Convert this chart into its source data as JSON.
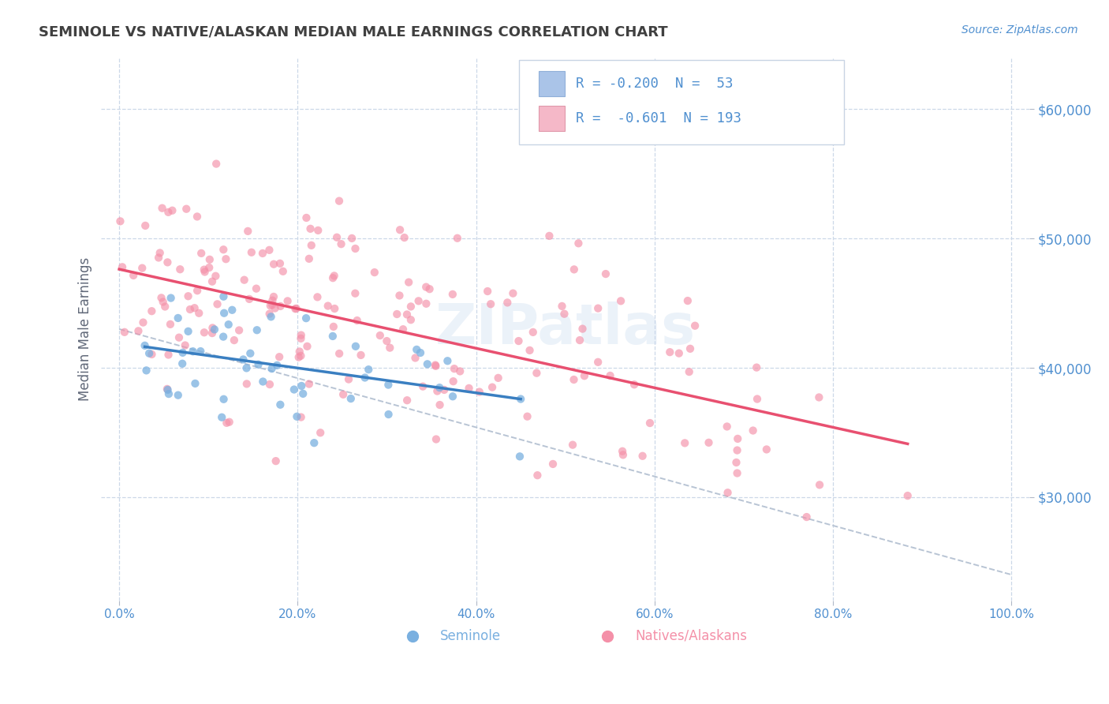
{
  "title": "SEMINOLE VS NATIVE/ALASKAN MEDIAN MALE EARNINGS CORRELATION CHART",
  "source": "Source: ZipAtlas.com",
  "ylabel": "Median Male Earnings",
  "yticks": [
    30000,
    40000,
    50000,
    60000
  ],
  "ytick_labels": [
    "$30,000",
    "$40,000",
    "$50,000",
    "$60,000"
  ],
  "watermark": "ZIPatlas",
  "legend_seminole_R": "-0.200",
  "legend_seminole_N": "53",
  "legend_native_R": "-0.601",
  "legend_native_N": "193",
  "legend_seminole_box_color": "#aac4e8",
  "legend_native_box_color": "#f5b8c8",
  "seminole_color": "#7ab0e0",
  "native_color": "#f490a8",
  "trendline_seminole_color": "#3a7fc1",
  "trendline_native_color": "#e85070",
  "dashed_line_color": "#b8c4d4",
  "background_color": "#ffffff",
  "grid_color": "#ccd8e8",
  "title_color": "#404040",
  "source_color": "#5090d0",
  "legend_text_color": "#5090d0",
  "axis_label_color": "#5090d0",
  "ylabel_color": "#606878",
  "bottom_legend_seminole_color": "#7ab0e0",
  "bottom_legend_native_color": "#f490a8"
}
